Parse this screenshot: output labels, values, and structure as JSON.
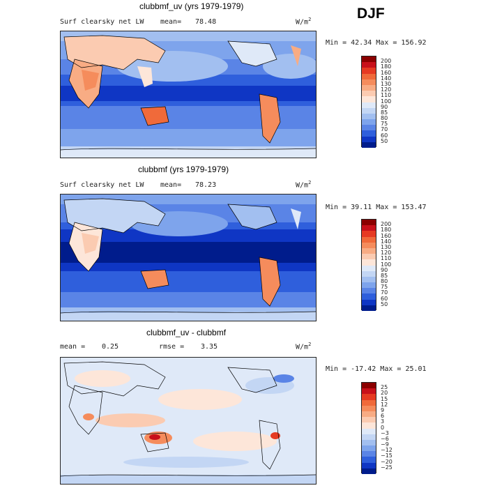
{
  "season": "DJF",
  "units": "W/m",
  "units_exp": "2",
  "panels": [
    {
      "title": "clubbmf_uv (yrs 1979-1979)",
      "variable": "Surf clearsky net LW",
      "mean_label": "mean=",
      "mean_value": "78.48",
      "min_label": "Min =",
      "min_value": "42.34",
      "max_label": "Max =",
      "max_value": "156.92",
      "levels": [
        "200",
        "180",
        "160",
        "140",
        "130",
        "120",
        "110",
        "100",
        "90",
        "85",
        "80",
        "75",
        "70",
        "60",
        "50"
      ],
      "colors": [
        "#8b0000",
        "#c8101a",
        "#e63a22",
        "#f06a3a",
        "#f58c5c",
        "#f8ac84",
        "#fbcbb1",
        "#fde6d9",
        "#dfe9f8",
        "#c3d6f4",
        "#a2bff0",
        "#7ea4ec",
        "#5a84e6",
        "#2f5fdc",
        "#0f36c4",
        "#001c8c"
      ]
    },
    {
      "title": "clubbmf (yrs 1979-1979)",
      "variable": "Surf clearsky net LW",
      "mean_label": "mean=",
      "mean_value": "78.23",
      "min_label": "Min =",
      "min_value": "39.11",
      "max_label": "Max =",
      "max_value": "153.47",
      "levels": [
        "200",
        "180",
        "160",
        "140",
        "130",
        "120",
        "110",
        "100",
        "90",
        "85",
        "80",
        "75",
        "70",
        "60",
        "50"
      ],
      "colors": [
        "#8b0000",
        "#c8101a",
        "#e63a22",
        "#f06a3a",
        "#f58c5c",
        "#f8ac84",
        "#fbcbb1",
        "#fde6d9",
        "#dfe9f8",
        "#c3d6f4",
        "#a2bff0",
        "#7ea4ec",
        "#5a84e6",
        "#2f5fdc",
        "#0f36c4",
        "#001c8c"
      ]
    },
    {
      "title": "clubbmf_uv - clubbmf",
      "mean_label": "mean =",
      "mean_value": "0.25",
      "rmse_label": "rmse =",
      "rmse_value": "3.35",
      "min_label": "Min =",
      "min_value": "-17.42",
      "max_label": "Max =",
      "max_value": "25.01",
      "levels": [
        "25",
        "20",
        "15",
        "12",
        "9",
        "6",
        "3",
        "0",
        "−3",
        "−6",
        "−9",
        "−12",
        "−15",
        "−20",
        "−25"
      ],
      "colors": [
        "#8b0000",
        "#c8101a",
        "#e63a22",
        "#f06a3a",
        "#f58c5c",
        "#f8ac84",
        "#fbcbb1",
        "#fde6d9",
        "#dfe9f8",
        "#c3d6f4",
        "#a2bff0",
        "#7ea4ec",
        "#5a84e6",
        "#2f5fdc",
        "#0f36c4",
        "#001c8c"
      ]
    }
  ]
}
